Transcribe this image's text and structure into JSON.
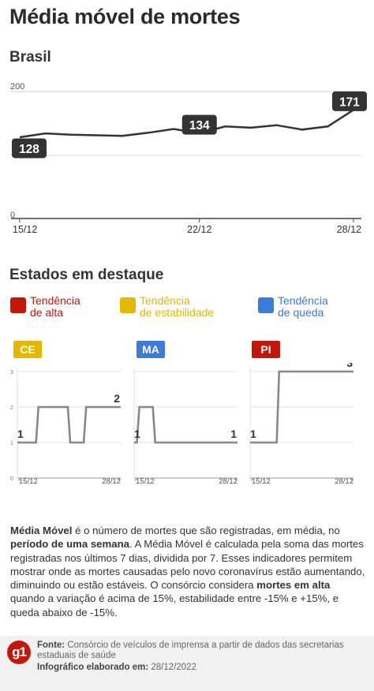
{
  "title": "Média móvel de mortes",
  "subtitle": "Brasil",
  "main_chart": {
    "y_ticks": [
      "200",
      "0"
    ],
    "x_ticks": [
      "15/12",
      "22/12",
      "28/12"
    ],
    "labels": [
      "128",
      "134",
      "171"
    ]
  },
  "chart_data": [
    {
      "type": "line",
      "title": "Média móvel de mortes",
      "subtitle": "Brasil",
      "x": [
        "15/12",
        "16/12",
        "17/12",
        "18/12",
        "19/12",
        "20/12",
        "21/12",
        "22/12",
        "23/12",
        "24/12",
        "25/12",
        "26/12",
        "27/12",
        "28/12"
      ],
      "series": [
        {
          "values": [
            128,
            134,
            132,
            131,
            130,
            135,
            141,
            134,
            145,
            143,
            147,
            140,
            145,
            171
          ]
        }
      ],
      "ylim": [
        0,
        200
      ],
      "y_ticks": [
        0,
        200
      ],
      "x_tick_labels": [
        "15/12",
        "22/12",
        "28/12"
      ],
      "data_labels": [
        {
          "x": "15/12",
          "value": 128
        },
        {
          "x": "22/12",
          "value": 134
        },
        {
          "x": "28/12",
          "value": 171
        }
      ],
      "grid": true
    },
    {
      "type": "line",
      "title": "CE",
      "x": [
        "15/12",
        "16/12",
        "17/12",
        "18/12",
        "19/12",
        "20/12",
        "21/12",
        "22/12",
        "23/12",
        "24/12",
        "25/12",
        "26/12",
        "27/12",
        "28/12"
      ],
      "series": [
        {
          "values": [
            1,
            1,
            1,
            2,
            2,
            2,
            2,
            1,
            1,
            2,
            2,
            2,
            2,
            2
          ]
        }
      ],
      "ylim": [
        0,
        3
      ],
      "y_ticks": [
        0,
        1,
        2,
        3
      ],
      "data_labels": [
        {
          "x": "15/12",
          "value": 1
        },
        {
          "x": "28/12",
          "value": 2
        }
      ],
      "color": "#888888"
    },
    {
      "type": "line",
      "title": "MA",
      "x": [
        "15/12",
        "16/12",
        "17/12",
        "18/12",
        "19/12",
        "20/12",
        "21/12",
        "22/12",
        "23/12",
        "24/12",
        "25/12",
        "26/12",
        "27/12",
        "28/12"
      ],
      "series": [
        {
          "values": [
            1,
            2,
            2,
            1,
            1,
            1,
            1,
            1,
            1,
            1,
            1,
            1,
            1,
            1
          ]
        }
      ],
      "ylim": [
        0,
        3
      ],
      "data_labels": [
        {
          "x": "15/12",
          "value": 1
        },
        {
          "x": "28/12",
          "value": 1
        }
      ],
      "color": "#888888"
    },
    {
      "type": "line",
      "title": "PI",
      "x": [
        "15/12",
        "16/12",
        "17/12",
        "18/12",
        "19/12",
        "20/12",
        "21/12",
        "22/12",
        "23/12",
        "24/12",
        "25/12",
        "26/12",
        "27/12",
        "28/12"
      ],
      "series": [
        {
          "values": [
            1,
            1,
            1,
            1,
            3,
            3,
            3,
            3,
            3,
            3,
            3,
            3,
            3,
            3
          ]
        }
      ],
      "ylim": [
        0,
        3
      ],
      "data_labels": [
        {
          "x": "15/12",
          "value": 1
        },
        {
          "x": "28/12",
          "value": 3
        }
      ],
      "color": "#888888"
    }
  ],
  "states_heading": "Estados em destaque",
  "legend": [
    {
      "label": "Tendência\nde alta",
      "color": "#c4170c"
    },
    {
      "label": "Tendência\nde estabilidade",
      "color": "#e5b800"
    },
    {
      "label": "Tendência\nde queda",
      "color": "#3d7bd9"
    }
  ],
  "states": [
    {
      "name": "CE",
      "badge_color": "#e5b800",
      "first_label": "1",
      "last_label": "2",
      "x_ticks": [
        "15/12",
        "28/12"
      ],
      "y_ticks": [
        "3",
        "2",
        "1",
        "0"
      ]
    },
    {
      "name": "MA",
      "badge_color": "#3d7bd9",
      "first_label": "1",
      "last_label": "1",
      "x_ticks": [
        "15/12",
        "28/12"
      ]
    },
    {
      "name": "PI",
      "badge_color": "#c4170c",
      "first_label": "1",
      "last_label": "3",
      "x_ticks": [
        "15/12",
        "28/12"
      ]
    }
  ],
  "note": {
    "p1": "Média Móvel",
    "p2": " é o número de mortes que são registradas, em média, no ",
    "p3": "período de uma semana",
    "p4": ". A Média Móvel é calculada pela soma das mortes registradas nos últimos 7 dias, dividida por 7. Esses indicadores permitem mostrar onde as mortes causadas pelo novo coronavírus estão aumentando, diminuindo ou estão estáveis. O consórcio considera ",
    "p5": "mortes em alta",
    "p6": " quando a variação é acima de 15%, estabilidade entre -15% e +15%, e queda abaixo de -15%."
  },
  "footer": {
    "logo": "g1",
    "source_label": "Fonte:",
    "source_text": " Consórcio de veículos de imprensa a partir de dados das secretarias estaduais de saúde",
    "made_label": "Infográfico elaborado em:",
    "made_date": " 28/12/2022"
  }
}
